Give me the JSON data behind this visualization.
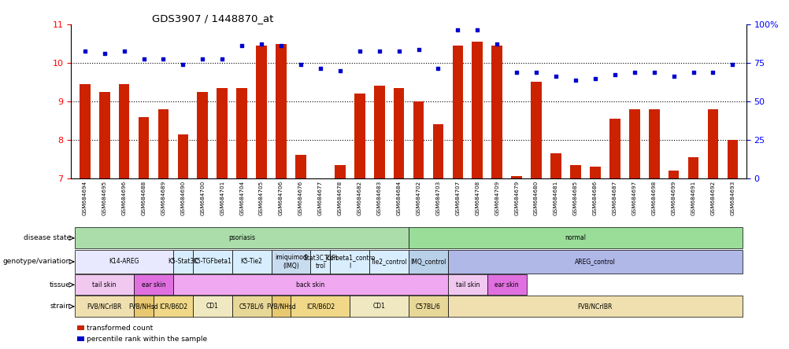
{
  "title": "GDS3907 / 1448870_at",
  "samples": [
    "GSM684694",
    "GSM684695",
    "GSM684696",
    "GSM684688",
    "GSM684689",
    "GSM684690",
    "GSM684700",
    "GSM684701",
    "GSM684704",
    "GSM684705",
    "GSM684706",
    "GSM684676",
    "GSM684677",
    "GSM684678",
    "GSM684682",
    "GSM684683",
    "GSM684684",
    "GSM684702",
    "GSM684703",
    "GSM684707",
    "GSM684708",
    "GSM684709",
    "GSM684679",
    "GSM684680",
    "GSM684681",
    "GSM684685",
    "GSM684686",
    "GSM684687",
    "GSM684697",
    "GSM684698",
    "GSM684699",
    "GSM684691",
    "GSM684692",
    "GSM684693"
  ],
  "bar_values": [
    9.45,
    9.25,
    9.45,
    8.6,
    8.8,
    8.15,
    9.25,
    9.35,
    9.35,
    10.45,
    10.5,
    7.6,
    7.0,
    7.35,
    9.2,
    9.4,
    9.35,
    9.0,
    8.4,
    10.45,
    10.55,
    10.45,
    7.05,
    9.5,
    7.65,
    7.35,
    7.3,
    8.55,
    8.8,
    8.8,
    7.2,
    7.55,
    8.8,
    8.0
  ],
  "dot_values_left": [
    10.3,
    10.25,
    10.3,
    10.1,
    10.1,
    9.95,
    10.1,
    10.1,
    10.45,
    10.5,
    10.45,
    9.95,
    9.85,
    9.8,
    10.3,
    10.3,
    10.3,
    10.35,
    9.85,
    10.85,
    10.85,
    10.5,
    9.75,
    9.75,
    9.65,
    9.55,
    9.6,
    9.7,
    9.75,
    9.75,
    9.65,
    9.75,
    9.75,
    9.95
  ],
  "ylim": [
    7,
    11
  ],
  "yticks": [
    7,
    8,
    9,
    10,
    11
  ],
  "right_ylim": [
    0,
    100
  ],
  "right_yticks": [
    0,
    25,
    50,
    75,
    100
  ],
  "right_ytick_labels": [
    "0",
    "25",
    "50",
    "75",
    "100%"
  ],
  "bar_color": "#cc2200",
  "dot_color": "#0000cc",
  "bar_width": 0.55,
  "disease_state_groups": [
    {
      "label": "psoriasis",
      "start": 0,
      "end": 17,
      "color": "#aaddaa"
    },
    {
      "label": "normal",
      "start": 17,
      "end": 34,
      "color": "#99dd99"
    }
  ],
  "genotype_variation_groups": [
    {
      "label": "K14-AREG",
      "start": 0,
      "end": 5,
      "color": "#e8e8ff"
    },
    {
      "label": "K5-Stat3C",
      "start": 5,
      "end": 6,
      "color": "#d8eeff"
    },
    {
      "label": "K5-TGFbeta1",
      "start": 6,
      "end": 8,
      "color": "#d8eeff"
    },
    {
      "label": "K5-Tie2",
      "start": 8,
      "end": 10,
      "color": "#d8eeff"
    },
    {
      "label": "imiquimod\n(IMQ)",
      "start": 10,
      "end": 12,
      "color": "#c8dcf0"
    },
    {
      "label": "Stat3C_con\ntrol",
      "start": 12,
      "end": 13,
      "color": "#d8eeff"
    },
    {
      "label": "TGFbeta1_contro\nl",
      "start": 13,
      "end": 15,
      "color": "#d8eeff"
    },
    {
      "label": "Tie2_control",
      "start": 15,
      "end": 17,
      "color": "#d8eeff"
    },
    {
      "label": "IMQ_control",
      "start": 17,
      "end": 19,
      "color": "#b8d0e8"
    },
    {
      "label": "AREG_control",
      "start": 19,
      "end": 34,
      "color": "#b0b8e8"
    }
  ],
  "tissue_groups": [
    {
      "label": "tail skin",
      "start": 0,
      "end": 3,
      "color": "#f0c8f0"
    },
    {
      "label": "ear skin",
      "start": 3,
      "end": 5,
      "color": "#e070e0"
    },
    {
      "label": "back skin",
      "start": 5,
      "end": 19,
      "color": "#f0a8f0"
    },
    {
      "label": "tail skin",
      "start": 19,
      "end": 21,
      "color": "#f0c8f0"
    },
    {
      "label": "ear skin",
      "start": 21,
      "end": 23,
      "color": "#e070e0"
    }
  ],
  "strain_groups": [
    {
      "label": "FVB/NCrIBR",
      "start": 0,
      "end": 3,
      "color": "#f0e0b0"
    },
    {
      "label": "FVB/NHsd",
      "start": 3,
      "end": 4,
      "color": "#e8c870"
    },
    {
      "label": "ICR/B6D2",
      "start": 4,
      "end": 6,
      "color": "#f0d888"
    },
    {
      "label": "CD1",
      "start": 6,
      "end": 8,
      "color": "#f0e8c0"
    },
    {
      "label": "C57BL/6",
      "start": 8,
      "end": 10,
      "color": "#e8d898"
    },
    {
      "label": "FVB/NHsd",
      "start": 10,
      "end": 11,
      "color": "#e8c870"
    },
    {
      "label": "ICR/B6D2",
      "start": 11,
      "end": 14,
      "color": "#f0d888"
    },
    {
      "label": "CD1",
      "start": 14,
      "end": 17,
      "color": "#f0e8c0"
    },
    {
      "label": "C57BL/6",
      "start": 17,
      "end": 19,
      "color": "#e8d898"
    },
    {
      "label": "FVB/NCrIBR",
      "start": 19,
      "end": 34,
      "color": "#f0e0b0"
    }
  ],
  "legend_items": [
    {
      "color": "#cc2200",
      "label": "transformed count"
    },
    {
      "color": "#0000cc",
      "label": "percentile rank within the sample"
    }
  ]
}
